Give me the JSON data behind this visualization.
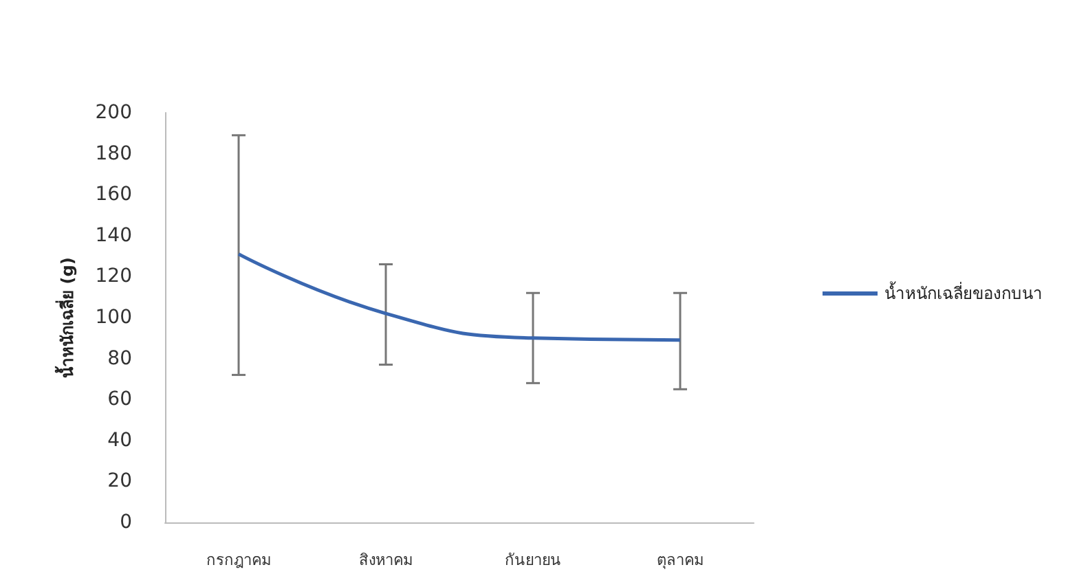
{
  "chart_data": {
    "type": "line",
    "ylabel": "น้ำหนักเฉลี่ย (g)",
    "categories": [
      "กรกฎาคม",
      "สิงหาคม",
      "กันยายน",
      "ตุลาคม"
    ],
    "series": [
      {
        "name": "น้ำหนักเฉลี่ยของกบนา",
        "color": "#3a67b0",
        "values": [
          131,
          102,
          90,
          89
        ],
        "errors": [
          [
            72,
            189
          ],
          [
            77,
            126
          ],
          [
            68,
            112
          ],
          [
            65,
            112
          ]
        ]
      }
    ],
    "ylim": [
      0,
      200
    ],
    "yticks": [
      0,
      20,
      40,
      60,
      80,
      100,
      120,
      140,
      160,
      180,
      200
    ],
    "grid": false,
    "legend": "right",
    "marker": "none",
    "line_style": "solid"
  }
}
